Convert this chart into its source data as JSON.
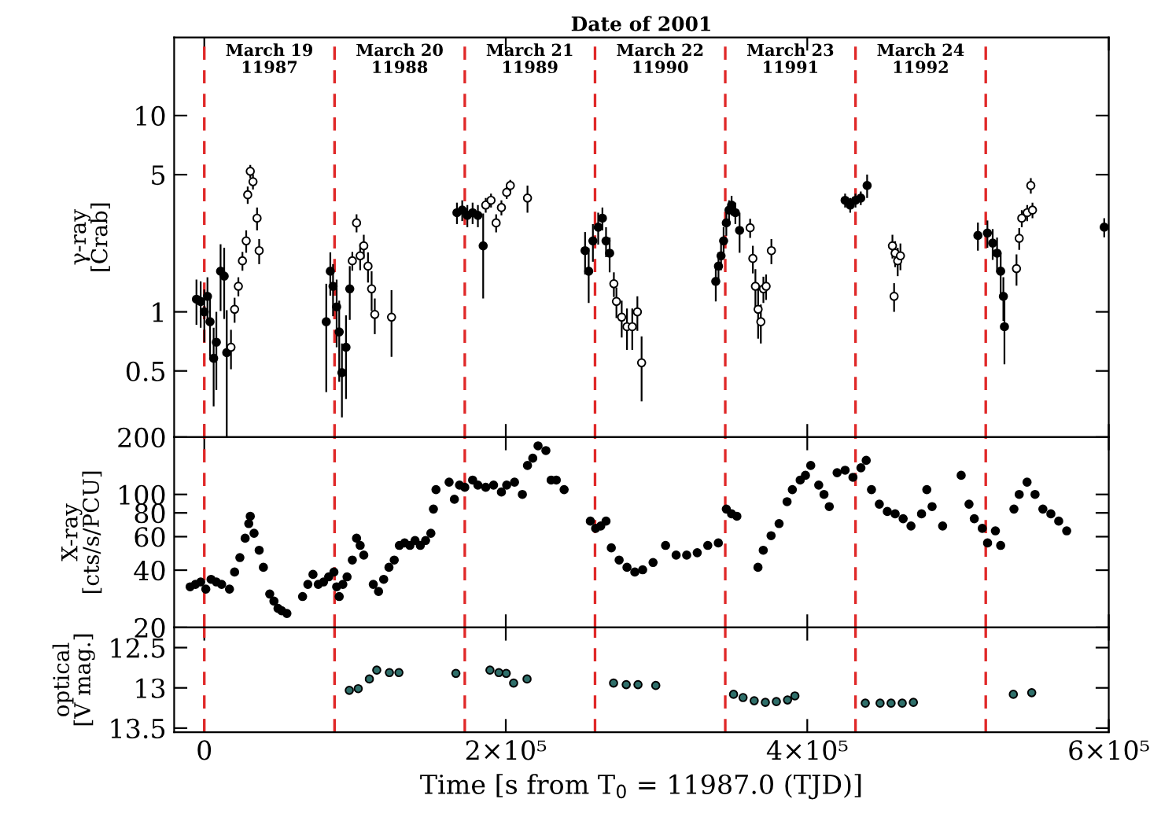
{
  "chart_data": [
    {
      "type": "scatter",
      "title": "Date of 2001",
      "ylabel": "γ-ray\n[Crab]",
      "log": "y",
      "xlim": [
        -20000,
        600000
      ],
      "ylim": [
        0.23,
        25
      ],
      "xticks": [
        {
          "value": 0,
          "label": null
        },
        {
          "value": 200000,
          "label": null
        },
        {
          "value": 400000,
          "label": null
        },
        {
          "value": 600000,
          "label": null
        }
      ],
      "yticks": [
        0.5,
        1,
        5,
        10
      ],
      "tick_labels": "y",
      "grid": false,
      "legend": false,
      "marker": "circle",
      "annotations": [
        "March 19\n11987",
        "March 20\n11988",
        "March 21\n11989",
        "March 22\n11990",
        "March 23\n11991",
        "March 24\n11992"
      ],
      "ref_lines": [
        {
          "axis": "x",
          "value": 0,
          "color": "#e02828",
          "line_style": "dashed"
        },
        {
          "axis": "x",
          "value": 86400,
          "color": "#e02828",
          "line_style": "dashed"
        },
        {
          "axis": "x",
          "value": 172800,
          "color": "#e02828",
          "line_style": "dashed"
        },
        {
          "axis": "x",
          "value": 259200,
          "color": "#e02828",
          "line_style": "dashed"
        },
        {
          "axis": "x",
          "value": 345600,
          "color": "#e02828",
          "line_style": "dashed"
        },
        {
          "axis": "x",
          "value": 432000,
          "color": "#e02828",
          "line_style": "dashed"
        },
        {
          "axis": "x",
          "value": 518400,
          "color": "#e02828",
          "line_style": "dashed"
        }
      ],
      "series": [
        {
          "color": "#000000",
          "x": [
            -5200,
            -2400,
            0,
            2100,
            3800,
            6200,
            8000,
            10800,
            13200,
            14900,
            80900,
            83600,
            85400,
            87800,
            89500,
            91300,
            94000,
            96500,
            167600,
            171100,
            174500,
            178000,
            181500,
            185000,
            252600,
            255000,
            257800,
            261300,
            264100,
            266500,
            268900,
            339300,
            341100,
            342800,
            344500,
            346300,
            348100,
            349800,
            352300,
            355100,
            425100,
            428500,
            432000,
            435500,
            439700,
            513200,
            519500,
            523000,
            525900,
            528300,
            530100,
            530800,
            597000
          ],
          "values": [
            1.16,
            1.13,
            1.0,
            1.2,
            0.89,
            0.58,
            0.7,
            1.61,
            1.52,
            0.62,
            0.89,
            1.61,
            1.35,
            1.06,
            0.79,
            0.49,
            0.66,
            1.31,
            3.2,
            3.3,
            3.1,
            3.2,
            3.1,
            2.17,
            2.05,
            1.61,
            2.3,
            2.7,
            3.0,
            2.3,
            1.99,
            1.43,
            1.71,
            1.93,
            2.3,
            2.84,
            3.3,
            3.5,
            3.2,
            2.6,
            3.7,
            3.5,
            3.7,
            3.8,
            4.4,
            2.45,
            2.52,
            2.24,
            1.99,
            1.61,
            1.2,
            0.84,
            2.7
          ],
          "errors": [
            0.3,
            0.3,
            0.3,
            0.3,
            0.3,
            0.25,
            0.3,
            0.6,
            0.6,
            0.4,
            0.5,
            0.4,
            0.4,
            0.4,
            0.35,
            0.2,
            0.3,
            0.4,
            0.4,
            0.4,
            0.4,
            0.4,
            0.4,
            1.0,
            0.5,
            0.5,
            0.5,
            0.5,
            0.4,
            0.4,
            0.4,
            0.3,
            0.3,
            0.3,
            0.4,
            0.4,
            0.4,
            0.4,
            0.4,
            0.6,
            0.3,
            0.3,
            0.3,
            0.3,
            0.6,
            0.4,
            0.4,
            0.4,
            0.4,
            0.4,
            0.3,
            0.3,
            0.3
          ]
        },
        {
          "color": "#ffffff",
          "x": [
            17700,
            20100,
            22600,
            25300,
            27800,
            28800,
            30500,
            32300,
            35000,
            36400,
            98200,
            101000,
            103400,
            105800,
            108600,
            111000,
            113100,
            124200,
            186700,
            190200,
            193600,
            197100,
            200600,
            203000,
            214400,
            271700,
            273400,
            276900,
            280400,
            283900,
            287300,
            290100,
            362100,
            363900,
            365600,
            367400,
            369200,
            370900,
            372700,
            376200,
            456500,
            457600,
            458300,
            460000,
            461800,
            538800,
            540600,
            542300,
            545900,
            548300,
            549400
          ],
          "values": [
            0.66,
            1.03,
            1.35,
            1.82,
            2.3,
            3.95,
            5.2,
            4.6,
            3.0,
            2.05,
            1.82,
            2.84,
            1.93,
            2.17,
            1.71,
            1.31,
            0.97,
            0.94,
            3.5,
            3.7,
            2.84,
            3.4,
            4.06,
            4.4,
            3.8,
            1.39,
            1.13,
            0.94,
            0.84,
            0.84,
            1.0,
            0.55,
            2.68,
            1.87,
            1.35,
            1.03,
            0.89,
            1.31,
            1.35,
            2.05,
            2.17,
            1.2,
            1.99,
            1.82,
            1.93,
            1.66,
            2.37,
            3.0,
            3.2,
            4.4,
            3.3
          ],
          "errors": [
            0.15,
            0.15,
            0.15,
            0.2,
            0.3,
            0.4,
            0.4,
            0.4,
            0.4,
            0.3,
            0.2,
            0.3,
            0.3,
            0.3,
            0.3,
            0.3,
            0.2,
            0.35,
            0.3,
            0.3,
            0.3,
            0.3,
            0.3,
            0.3,
            0.6,
            0.2,
            0.2,
            0.2,
            0.2,
            0.2,
            0.2,
            0.2,
            0.3,
            0.3,
            0.3,
            0.3,
            0.2,
            0.2,
            0.2,
            0.3,
            0.3,
            0.2,
            0.3,
            0.3,
            0.3,
            0.3,
            0.3,
            0.3,
            0.3,
            0.4,
            0.3
          ]
        }
      ]
    },
    {
      "type": "scatter",
      "ylabel": "X-ray\n[cts/s/PCU]",
      "log": "y",
      "xlim": [
        -20000,
        600000
      ],
      "ylim": [
        20,
        200
      ],
      "xticks": [
        {
          "value": 0,
          "label": null
        },
        {
          "value": 200000,
          "label": null
        },
        {
          "value": 400000,
          "label": null
        },
        {
          "value": 600000,
          "label": null
        }
      ],
      "yticks": [
        20,
        40,
        60,
        80,
        100,
        200
      ],
      "tick_labels": "y",
      "grid": false,
      "legend": false,
      "marker": "circle",
      "ref_lines": [
        {
          "axis": "x",
          "value": 0,
          "color": "#e02828",
          "line_style": "dashed"
        },
        {
          "axis": "x",
          "value": 86400,
          "color": "#e02828",
          "line_style": "dashed"
        },
        {
          "axis": "x",
          "value": 172800,
          "color": "#e02828",
          "line_style": "dashed"
        },
        {
          "axis": "x",
          "value": 259200,
          "color": "#e02828",
          "line_style": "dashed"
        },
        {
          "axis": "x",
          "value": 345600,
          "color": "#e02828",
          "line_style": "dashed"
        },
        {
          "axis": "x",
          "value": 432000,
          "color": "#e02828",
          "line_style": "dashed"
        },
        {
          "axis": "x",
          "value": 518400,
          "color": "#e02828",
          "line_style": "dashed"
        }
      ],
      "series": [
        {
          "color": "#000000",
          "x": [
            -9400,
            -5900,
            -2400,
            1000,
            4500,
            8000,
            11500,
            16700,
            20100,
            23600,
            27100,
            29500,
            30500,
            33000,
            36400,
            39200,
            43400,
            46200,
            48900,
            51300,
            54800,
            65200,
            68700,
            72100,
            75600,
            79100,
            82500,
            86000,
            87800,
            89500,
            91900,
            94700,
            98200,
            101000,
            103400,
            105800,
            112100,
            115600,
            119000,
            122500,
            126000,
            129400,
            132900,
            136400,
            139800,
            143300,
            146800,
            150300,
            152000,
            153700,
            162400,
            165900,
            169300,
            172800,
            178000,
            181500,
            186700,
            191900,
            197100,
            200600,
            205800,
            211000,
            214400,
            217900,
            221400,
            226600,
            230100,
            233500,
            238700,
            256100,
            259600,
            263000,
            266500,
            270000,
            275200,
            280400,
            285600,
            290800,
            297700,
            306000,
            313000,
            320000,
            327000,
            334000,
            341000,
            346300,
            349800,
            353300,
            367300,
            370800,
            376000,
            381300,
            386600,
            390100,
            395300,
            398800,
            402300,
            407600,
            411100,
            414600,
            419800,
            425100,
            430300,
            435600,
            439100,
            442600,
            447800,
            453100,
            458300,
            463600,
            468800,
            475800,
            479300,
            482800,
            489800,
            502100,
            507300,
            510800,
            516100,
            519600,
            524800,
            528300,
            537100,
            540600,
            545800,
            551100,
            556300,
            561600,
            566800,
            572100
          ],
          "values": [
            32.7,
            33.7,
            34.7,
            31.8,
            35.8,
            34.7,
            33.7,
            31.8,
            39.1,
            46.6,
            58.9,
            70.3,
            76.8,
            62.5,
            50.9,
            41.4,
            30.0,
            27.5,
            25.2,
            24.5,
            23.7,
            29.1,
            33.7,
            38.0,
            33.7,
            34.7,
            36.9,
            39.1,
            32.7,
            29.1,
            33.7,
            36.9,
            45.2,
            58.9,
            54.0,
            48.0,
            33.7,
            30.9,
            35.8,
            41.4,
            45.2,
            54.0,
            55.6,
            54.0,
            57.3,
            54.0,
            57.3,
            62.5,
            83.8,
            106,
            116,
            94.3,
            112,
            109,
            119,
            112,
            109,
            112,
            103,
            112,
            116,
            100,
            142,
            155,
            180,
            170,
            119,
            119,
            106,
            72.4,
            66.3,
            68.3,
            72.4,
            52.4,
            45.2,
            41.4,
            39.1,
            40.2,
            43.9,
            54.0,
            48.0,
            48.0,
            49.4,
            54.0,
            55.6,
            83.8,
            79.1,
            76.8,
            41.4,
            50.9,
            60.7,
            70.3,
            91.6,
            106,
            119,
            126,
            142,
            112,
            100,
            86.3,
            130,
            134,
            123,
            138,
            151,
            106,
            88.9,
            81.4,
            79.1,
            74.6,
            68.3,
            79.1,
            106,
            86.3,
            68.3,
            126,
            88.9,
            74.6,
            66.3,
            55.6,
            64.4,
            54.0,
            83.8,
            100,
            116,
            100,
            83.8,
            79.1,
            72.4,
            64.4
          ]
        }
      ]
    },
    {
      "type": "scatter",
      "ylabel": "optical\n[V mag.]",
      "xlabel": "Time [s from T$_{0}$ = 11987.0 (TJD)]",
      "xlim": [
        -20000,
        600000
      ],
      "ylim": [
        13.55,
        12.25
      ],
      "xticks": [
        0,
        {
          "value": 200000,
          "label": "2×10⁵"
        },
        {
          "value": 400000,
          "label": "4×10⁵"
        },
        {
          "value": 600000,
          "label": "6×10⁵"
        }
      ],
      "yticks": [
        12.5,
        13,
        13.5
      ],
      "grid": false,
      "legend": false,
      "marker": "circle",
      "ref_lines": [
        {
          "axis": "x",
          "value": 0,
          "color": "#e02828",
          "line_style": "dashed"
        },
        {
          "axis": "x",
          "value": 86400,
          "color": "#e02828",
          "line_style": "dashed"
        },
        {
          "axis": "x",
          "value": 172800,
          "color": "#e02828",
          "line_style": "dashed"
        },
        {
          "axis": "x",
          "value": 259200,
          "color": "#e02828",
          "line_style": "dashed"
        },
        {
          "axis": "x",
          "value": 345600,
          "color": "#e02828",
          "line_style": "dashed"
        },
        {
          "axis": "x",
          "value": 432000,
          "color": "#e02828",
          "line_style": "dashed"
        },
        {
          "axis": "x",
          "value": 518400,
          "color": "#e02828",
          "line_style": "dashed"
        }
      ],
      "series": [
        {
          "color": "#2f6f6a",
          "x": [
            96200,
            102100,
            109500,
            114400,
            122800,
            129100,
            166900,
            189500,
            195400,
            200300,
            205200,
            214100,
            271500,
            279900,
            287700,
            299500,
            351100,
            357400,
            364800,
            372200,
            379500,
            386900,
            391800,
            438500,
            448300,
            455600,
            463000,
            470400,
            536700,
            548900
          ],
          "values": [
            13.03,
            13.01,
            12.89,
            12.78,
            12.81,
            12.81,
            12.82,
            12.78,
            12.81,
            12.82,
            12.94,
            12.89,
            12.94,
            12.96,
            12.96,
            12.97,
            13.08,
            13.12,
            13.16,
            13.18,
            13.17,
            13.15,
            13.1,
            13.19,
            13.19,
            13.19,
            13.19,
            13.18,
            13.08,
            13.06
          ]
        }
      ]
    }
  ]
}
